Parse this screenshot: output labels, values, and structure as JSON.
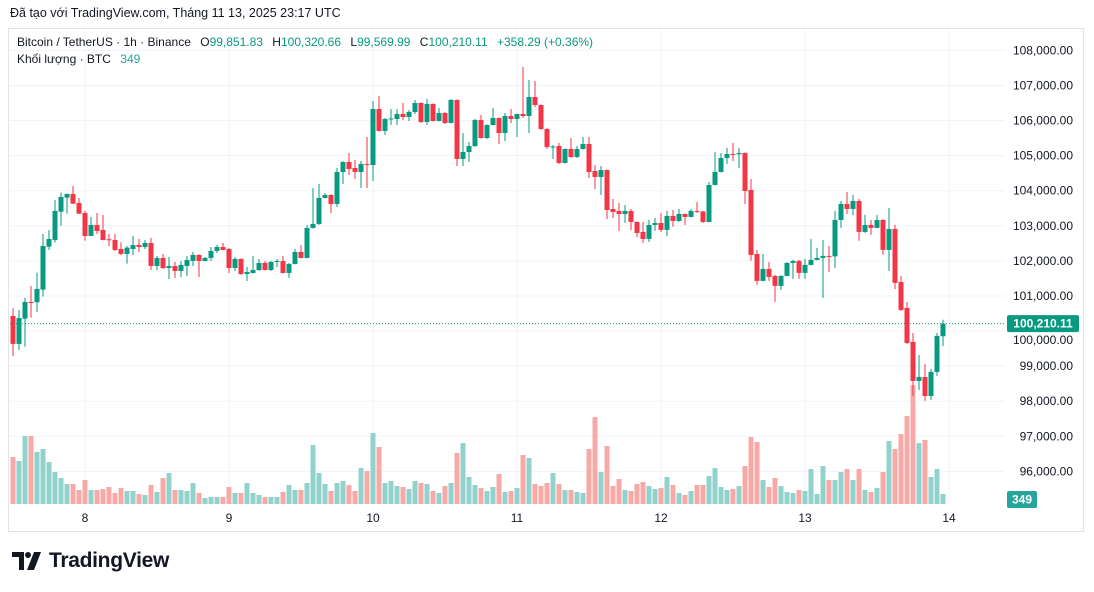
{
  "caption": "Đã tạo với TradingView.com, Tháng 11 13, 2025 23:17 UTC",
  "legend": {
    "symbol": "Bitcoin / TetherUS · 1h · Binance",
    "o_label": "O",
    "o": "99,851.83",
    "h_label": "H",
    "h": "100,320.66",
    "l_label": "L",
    "l": "99,569.99",
    "c_label": "C",
    "c": "100,210.11",
    "change": "+358.29 (+0.36%)",
    "volume_label": "Khối lượng · BTC",
    "volume": "349"
  },
  "price_axis": {
    "labels": [
      "108,000.00",
      "107,000.00",
      "106,000.00",
      "105,000.00",
      "104,000.00",
      "103,000.00",
      "102,000.00",
      "101,000.00",
      "100,000.00",
      "99,000.00",
      "98,000.00",
      "97,000.00",
      "96,000.00"
    ]
  },
  "time_axis": {
    "labels": [
      "8",
      "9",
      "10",
      "11",
      "12",
      "13",
      "14"
    ]
  },
  "last_price_badge": "100,210.11",
  "volume_badge": "349",
  "logo": "TradingView",
  "colors": {
    "up": "#089981",
    "down": "#f23645",
    "volume_up": "#92d2cc",
    "volume_down": "#f7a9a7",
    "volume_badge": "#26a69a",
    "grid": "#f0f3fa"
  },
  "chart_data": {
    "type": "candlestick",
    "interval": "1h",
    "ylim": [
      95070,
      108610
    ],
    "grid": true,
    "columns": [
      "open",
      "high",
      "low",
      "close",
      "volume"
    ],
    "candles": [
      [
        100430,
        100649,
        99290,
        99633,
        1640
      ],
      [
        99633,
        100602,
        99462,
        100374,
        1500
      ],
      [
        100355,
        100944,
        99557,
        100830,
        2372
      ],
      [
        100830,
        101285,
        100383,
        100820,
        2372
      ],
      [
        100820,
        101666,
        100545,
        101200,
        1814
      ],
      [
        101181,
        102768,
        100982,
        102426,
        1919
      ],
      [
        102407,
        102882,
        102312,
        102625,
        1465
      ],
      [
        102597,
        103736,
        102520,
        103423,
        1116
      ],
      [
        103404,
        103946,
        103005,
        103822,
        907
      ],
      [
        103803,
        103920,
        103347,
        103908,
        698
      ],
      [
        103908,
        104135,
        103620,
        103632,
        698
      ],
      [
        103651,
        103794,
        103340,
        103347,
        488
      ],
      [
        103366,
        103423,
        102578,
        102711,
        837
      ],
      [
        102711,
        103252,
        102711,
        103024,
        488
      ],
      [
        103024,
        103366,
        102768,
        102853,
        488
      ],
      [
        102882,
        103309,
        102590,
        102597,
        523
      ],
      [
        102616,
        102768,
        102426,
        102606,
        593
      ],
      [
        102597,
        102768,
        102283,
        102312,
        384
      ],
      [
        102340,
        102530,
        102169,
        102198,
        558
      ],
      [
        102198,
        102426,
        101922,
        102378,
        454
      ],
      [
        102340,
        102711,
        102169,
        102454,
        454
      ],
      [
        102454,
        102625,
        102255,
        102397,
        349
      ],
      [
        102397,
        102597,
        102340,
        102511,
        314
      ],
      [
        102511,
        102654,
        101741,
        101855,
        663
      ],
      [
        101855,
        102140,
        101741,
        102084,
        419
      ],
      [
        102084,
        102198,
        101770,
        101798,
        907
      ],
      [
        101798,
        102112,
        101485,
        101855,
        1082
      ],
      [
        101855,
        101969,
        101514,
        101713,
        488
      ],
      [
        101713,
        101998,
        101542,
        101884,
        488
      ],
      [
        101855,
        102140,
        101570,
        102027,
        454
      ],
      [
        101998,
        102255,
        101855,
        102169,
        733
      ],
      [
        102169,
        102198,
        101542,
        101998,
        384
      ],
      [
        101998,
        102112,
        101990,
        102084,
        209
      ],
      [
        102084,
        102397,
        101998,
        102283,
        244
      ],
      [
        102283,
        102454,
        102226,
        102397,
        244
      ],
      [
        102397,
        102511,
        102300,
        102312,
        244
      ],
      [
        102340,
        102369,
        101656,
        101798,
        593
      ],
      [
        101798,
        102112,
        101713,
        102055,
        384
      ],
      [
        102055,
        102070,
        101599,
        101627,
        384
      ],
      [
        101627,
        101827,
        101428,
        101684,
        733
      ],
      [
        101656,
        102140,
        101640,
        101741,
        384
      ],
      [
        101741,
        102055,
        101713,
        101941,
        314
      ],
      [
        101941,
        101998,
        101730,
        101741,
        244
      ],
      [
        101741,
        101998,
        101713,
        101969,
        244
      ],
      [
        101969,
        102055,
        101827,
        101998,
        244
      ],
      [
        101998,
        102140,
        101640,
        101656,
        419
      ],
      [
        101656,
        101941,
        101514,
        101912,
        663
      ],
      [
        101912,
        102340,
        101900,
        102255,
        488
      ],
      [
        102255,
        102454,
        102070,
        102084,
        488
      ],
      [
        102084,
        103024,
        102070,
        102939,
        733
      ],
      [
        102939,
        104078,
        102920,
        103053,
        2058
      ],
      [
        103053,
        104192,
        103024,
        103794,
        1082
      ],
      [
        103794,
        103936,
        103780,
        103879,
        698
      ],
      [
        103879,
        103900,
        103366,
        103622,
        454
      ],
      [
        103622,
        104648,
        103537,
        104534,
        733
      ],
      [
        104534,
        104840,
        104192,
        104820,
        802
      ],
      [
        104820,
        105076,
        104449,
        104620,
        663
      ],
      [
        104648,
        104876,
        104335,
        104534,
        454
      ],
      [
        104534,
        104848,
        104078,
        104762,
        1256
      ],
      [
        104762,
        105532,
        104078,
        104750,
        1151
      ],
      [
        104734,
        106558,
        104278,
        106330,
        2477
      ],
      [
        106330,
        106701,
        105690,
        105703,
        1989
      ],
      [
        105703,
        106074,
        105589,
        106045,
        733
      ],
      [
        106045,
        106330,
        105874,
        106060,
        802
      ],
      [
        106045,
        106330,
        105874,
        106188,
        628
      ],
      [
        106188,
        106501,
        106017,
        106102,
        593
      ],
      [
        106102,
        106302,
        105989,
        106245,
        523
      ],
      [
        106245,
        106587,
        106188,
        106501,
        802
      ],
      [
        106501,
        106520,
        105932,
        105960,
        733
      ],
      [
        105960,
        106615,
        105874,
        106473,
        698
      ],
      [
        106473,
        106490,
        105975,
        105988,
        454
      ],
      [
        105988,
        106359,
        105975,
        106216,
        384
      ],
      [
        106216,
        106245,
        105903,
        105931,
        628
      ],
      [
        105931,
        106615,
        105920,
        106587,
        733
      ],
      [
        106587,
        106600,
        104705,
        104905,
        1779
      ],
      [
        104905,
        105646,
        104705,
        105104,
        2128
      ],
      [
        105104,
        105389,
        104819,
        105275,
        942
      ],
      [
        105275,
        106045,
        105247,
        106017,
        663
      ],
      [
        106017,
        106159,
        105490,
        105503,
        558
      ],
      [
        105503,
        105890,
        105475,
        105874,
        454
      ],
      [
        105874,
        106359,
        105860,
        106074,
        593
      ],
      [
        106074,
        106090,
        105333,
        105646,
        1047
      ],
      [
        105646,
        106216,
        105418,
        106131,
        419
      ],
      [
        106131,
        106330,
        105931,
        106045,
        454
      ],
      [
        106045,
        106200,
        105532,
        106188,
        558
      ],
      [
        106188,
        107527,
        106074,
        106131,
        1710
      ],
      [
        106131,
        107157,
        105646,
        106672,
        1605
      ],
      [
        106672,
        107128,
        106387,
        106444,
        698
      ],
      [
        106444,
        106460,
        105731,
        105760,
        628
      ],
      [
        105760,
        105780,
        105190,
        105247,
        733
      ],
      [
        105247,
        105304,
        104905,
        105260,
        1082
      ],
      [
        105275,
        105361,
        104763,
        104791,
        698
      ],
      [
        104791,
        105200,
        104780,
        105190,
        488
      ],
      [
        105190,
        105503,
        104933,
        104962,
        488
      ],
      [
        104962,
        105275,
        104933,
        105190,
        419
      ],
      [
        105190,
        105532,
        105170,
        105332,
        384
      ],
      [
        105332,
        105532,
        104363,
        104534,
        1919
      ],
      [
        104563,
        104734,
        104050,
        104392,
        3035
      ],
      [
        104392,
        104705,
        103879,
        104591,
        1116
      ],
      [
        104591,
        104610,
        103195,
        103451,
        2024
      ],
      [
        103480,
        103765,
        103224,
        103394,
        628
      ],
      [
        103423,
        103651,
        102853,
        103337,
        872
      ],
      [
        103337,
        103594,
        103081,
        103423,
        488
      ],
      [
        103423,
        103480,
        102882,
        103110,
        454
      ],
      [
        103110,
        103130,
        102682,
        102796,
        698
      ],
      [
        102825,
        103110,
        102511,
        102625,
        768
      ],
      [
        102625,
        103167,
        102540,
        103024,
        628
      ],
      [
        103024,
        103224,
        102853,
        103081,
        523
      ],
      [
        103081,
        103367,
        102825,
        102882,
        558
      ],
      [
        102882,
        103423,
        102711,
        103281,
        942
      ],
      [
        103281,
        103452,
        102968,
        103138,
        663
      ],
      [
        103138,
        103480,
        103110,
        103338,
        384
      ],
      [
        103338,
        103350,
        103024,
        103252,
        314
      ],
      [
        103252,
        103480,
        103240,
        103423,
        454
      ],
      [
        103423,
        103680,
        103367,
        103410,
        663
      ],
      [
        103410,
        103420,
        103081,
        103110,
        663
      ],
      [
        103110,
        104250,
        103100,
        104164,
        977
      ],
      [
        104164,
        105105,
        104150,
        104535,
        1256
      ],
      [
        104535,
        105077,
        104520,
        104934,
        593
      ],
      [
        104934,
        105219,
        104763,
        105048,
        488
      ],
      [
        105048,
        105362,
        104848,
        105040,
        523
      ],
      [
        105040,
        105219,
        104649,
        105077,
        628
      ],
      [
        105077,
        105090,
        103623,
        103993,
        1326
      ],
      [
        104022,
        104335,
        102000,
        102170,
        2338
      ],
      [
        102198,
        102312,
        101316,
        101430,
        2163
      ],
      [
        101430,
        102198,
        101420,
        101772,
        837
      ],
      [
        101772,
        101971,
        101430,
        101544,
        593
      ],
      [
        101572,
        101600,
        100830,
        101287,
        907
      ],
      [
        101287,
        101590,
        101173,
        101572,
        628
      ],
      [
        101572,
        101960,
        101560,
        101942,
        419
      ],
      [
        101942,
        102028,
        101487,
        101999,
        384
      ],
      [
        101999,
        102028,
        101487,
        101658,
        488
      ],
      [
        101658,
        102056,
        101487,
        101885,
        454
      ],
      [
        101885,
        102627,
        101870,
        102028,
        1221
      ],
      [
        102028,
        102370,
        102010,
        102085,
        349
      ],
      [
        102085,
        102598,
        100945,
        102142,
        1326
      ],
      [
        102142,
        102427,
        101686,
        102130,
        837
      ],
      [
        102130,
        103424,
        101800,
        103167,
        837
      ],
      [
        103167,
        103708,
        102940,
        103623,
        1116
      ],
      [
        103623,
        103965,
        103338,
        103481,
        1221
      ],
      [
        103481,
        103879,
        103300,
        103708,
        837
      ],
      [
        103708,
        103765,
        102570,
        102826,
        1221
      ],
      [
        102826,
        103310,
        102800,
        103025,
        488
      ],
      [
        103025,
        103167,
        102740,
        102940,
        419
      ],
      [
        102940,
        103310,
        102930,
        103167,
        558
      ],
      [
        103167,
        103195,
        102170,
        102313,
        1116
      ],
      [
        102313,
        103510,
        101715,
        102911,
        2198
      ],
      [
        102911,
        103025,
        101200,
        101373,
        1919
      ],
      [
        101400,
        101572,
        100573,
        100602,
        2442
      ],
      [
        100659,
        100830,
        99632,
        99661,
        3070
      ],
      [
        99690,
        99946,
        98150,
        98578,
        4150
      ],
      [
        98578,
        99319,
        98321,
        98692,
        2128
      ],
      [
        98692,
        99063,
        98008,
        98150,
        2233
      ],
      [
        98150,
        98920,
        98036,
        98835,
        942
      ],
      [
        98835,
        99946,
        98721,
        99861,
        1221
      ],
      [
        99851.83,
        100320.66,
        99569.99,
        100210.11,
        349
      ]
    ],
    "last_price": 100210.11
  }
}
